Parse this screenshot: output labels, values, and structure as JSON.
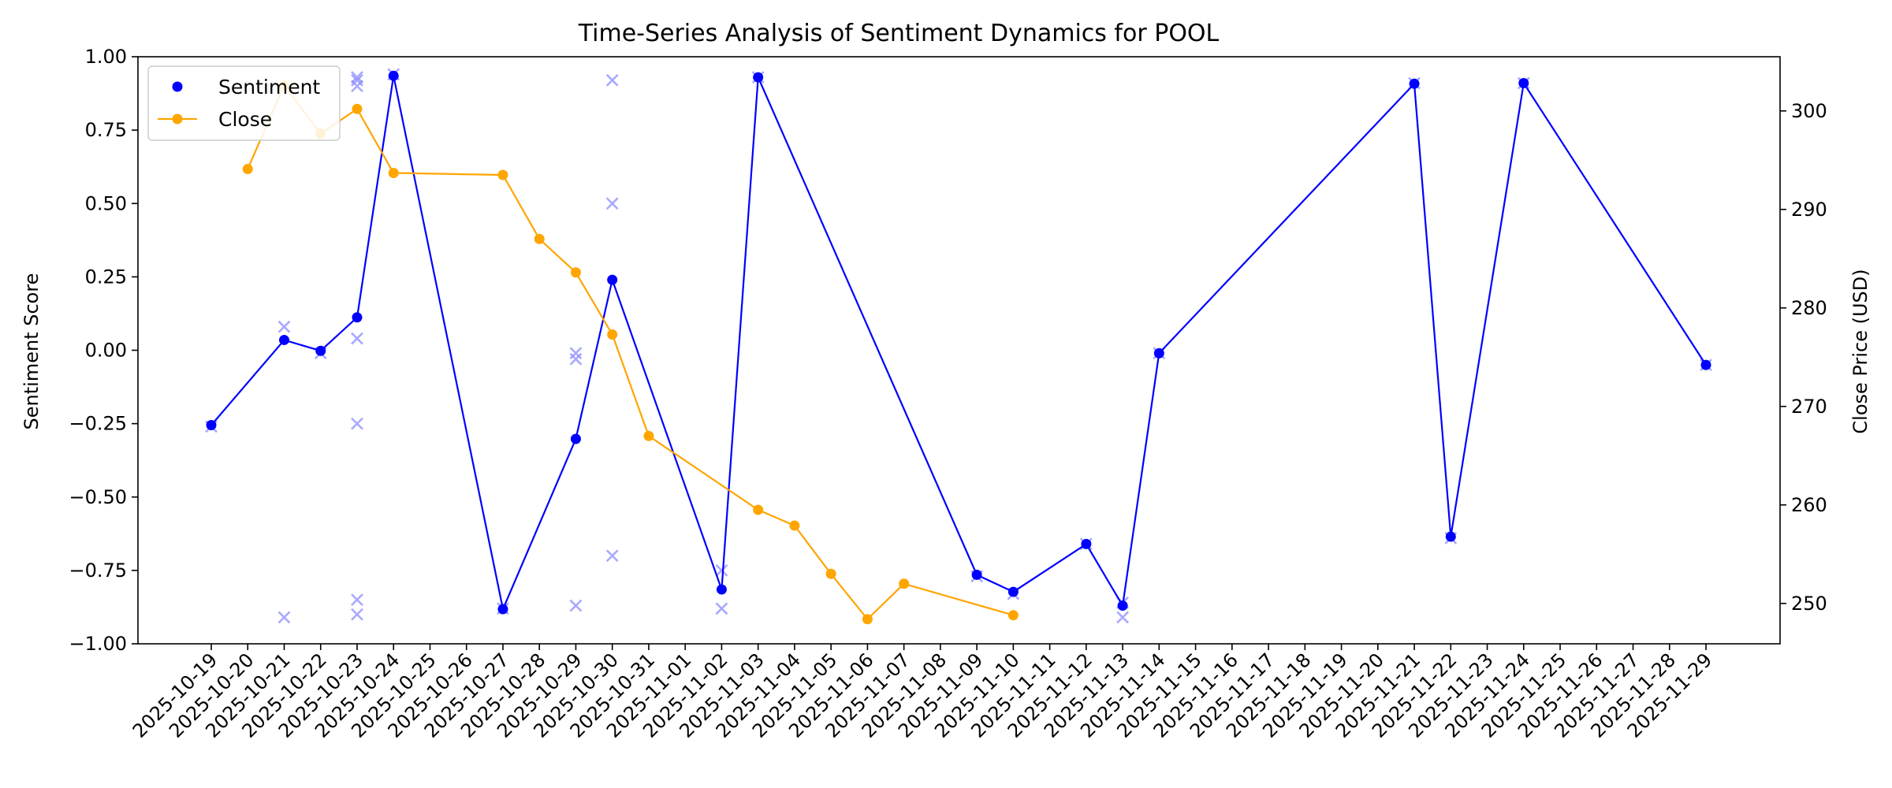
{
  "chart_data": {
    "type": "line",
    "title": "Time-Series Analysis of Sentiment Dynamics for POOL",
    "xlabel": "",
    "ylabel": "Sentiment Score",
    "y2label": "Close Price (USD)",
    "ylim": [
      -1.0,
      1.0
    ],
    "y2lim": [
      245.9,
      305.5
    ],
    "yticks": [
      "1.00",
      "0.75",
      "0.50",
      "0.25",
      "0.00",
      "−0.25",
      "−0.50",
      "−0.75",
      "−1.00"
    ],
    "y2ticks": [
      "300",
      "290",
      "280",
      "270",
      "260",
      "250"
    ],
    "x_dates": [
      "2025-10-19",
      "2025-10-20",
      "2025-10-21",
      "2025-10-22",
      "2025-10-23",
      "2025-10-24",
      "2025-10-25",
      "2025-10-26",
      "2025-10-27",
      "2025-10-28",
      "2025-10-29",
      "2025-10-30",
      "2025-10-31",
      "2025-11-01",
      "2025-11-02",
      "2025-11-03",
      "2025-11-04",
      "2025-11-05",
      "2025-11-06",
      "2025-11-07",
      "2025-11-08",
      "2025-11-09",
      "2025-11-10",
      "2025-11-11",
      "2025-11-12",
      "2025-11-13",
      "2025-11-14",
      "2025-11-15",
      "2025-11-16",
      "2025-11-17",
      "2025-11-18",
      "2025-11-19",
      "2025-11-20",
      "2025-11-21",
      "2025-11-22",
      "2025-11-23",
      "2025-11-24",
      "2025-11-25",
      "2025-11-26",
      "2025-11-27",
      "2025-11-28",
      "2025-11-29"
    ],
    "grid": false,
    "legend_position": "top-left",
    "colors": {
      "sentiment": "#0000ff",
      "close": "#ffa500",
      "raw": "#8c8cff"
    },
    "series": [
      {
        "name": "Sentiment",
        "axis": "left",
        "points": [
          [
            "2025-10-19",
            -0.255
          ],
          [
            "2025-10-21",
            0.035
          ],
          [
            "2025-10-22",
            -0.002
          ],
          [
            "2025-10-23",
            0.112
          ],
          [
            "2025-10-24",
            0.935
          ],
          [
            "2025-10-27",
            -0.882
          ],
          [
            "2025-10-29",
            -0.302
          ],
          [
            "2025-10-30",
            0.24
          ],
          [
            "2025-11-02",
            -0.815
          ],
          [
            "2025-11-03",
            0.93
          ],
          [
            "2025-11-09",
            -0.765
          ],
          [
            "2025-11-10",
            -0.823
          ],
          [
            "2025-11-12",
            -0.66
          ],
          [
            "2025-11-13",
            -0.87
          ],
          [
            "2025-11-14",
            -0.01
          ],
          [
            "2025-11-21",
            0.908
          ],
          [
            "2025-11-22",
            -0.635
          ],
          [
            "2025-11-24",
            0.91
          ],
          [
            "2025-11-29",
            -0.05
          ]
        ]
      },
      {
        "name": "Close",
        "axis": "right",
        "points": [
          [
            "2025-10-20",
            294.1
          ],
          [
            "2025-10-21",
            302.6
          ],
          [
            "2025-10-22",
            297.7
          ],
          [
            "2025-10-23",
            300.2
          ],
          [
            "2025-10-24",
            293.7
          ],
          [
            "2025-10-27",
            293.5
          ],
          [
            "2025-10-28",
            287.0
          ],
          [
            "2025-10-29",
            283.6
          ],
          [
            "2025-10-30",
            277.3
          ],
          [
            "2025-10-31",
            267.0
          ],
          [
            "2025-11-03",
            259.5
          ],
          [
            "2025-11-04",
            257.9
          ],
          [
            "2025-11-05",
            253.0
          ],
          [
            "2025-11-06",
            248.4
          ],
          [
            "2025-11-07",
            252.0
          ],
          [
            "2025-11-10",
            248.8
          ]
        ]
      }
    ],
    "raw_scores": [
      [
        "2025-10-19",
        -0.26
      ],
      [
        "2025-10-21",
        0.08
      ],
      [
        "2025-10-21",
        -0.91
      ],
      [
        "2025-10-22",
        -0.01
      ],
      [
        "2025-10-23",
        0.93
      ],
      [
        "2025-10-23",
        0.92
      ],
      [
        "2025-10-23",
        0.9
      ],
      [
        "2025-10-23",
        0.04
      ],
      [
        "2025-10-23",
        -0.25
      ],
      [
        "2025-10-23",
        -0.85
      ],
      [
        "2025-10-23",
        -0.9
      ],
      [
        "2025-10-24",
        0.94
      ],
      [
        "2025-10-27",
        -0.88
      ],
      [
        "2025-10-29",
        -0.01
      ],
      [
        "2025-10-29",
        -0.03
      ],
      [
        "2025-10-29",
        -0.87
      ],
      [
        "2025-10-30",
        0.92
      ],
      [
        "2025-10-30",
        0.5
      ],
      [
        "2025-10-30",
        -0.7
      ],
      [
        "2025-11-02",
        -0.75
      ],
      [
        "2025-11-02",
        -0.88
      ],
      [
        "2025-11-03",
        0.93
      ],
      [
        "2025-11-09",
        -0.77
      ],
      [
        "2025-11-10",
        -0.83
      ],
      [
        "2025-11-12",
        -0.66
      ],
      [
        "2025-11-13",
        -0.86
      ],
      [
        "2025-11-13",
        -0.91
      ],
      [
        "2025-11-14",
        -0.01
      ],
      [
        "2025-11-21",
        0.91
      ],
      [
        "2025-11-22",
        -0.64
      ],
      [
        "2025-11-24",
        0.91
      ],
      [
        "2025-11-29",
        -0.05
      ]
    ]
  }
}
